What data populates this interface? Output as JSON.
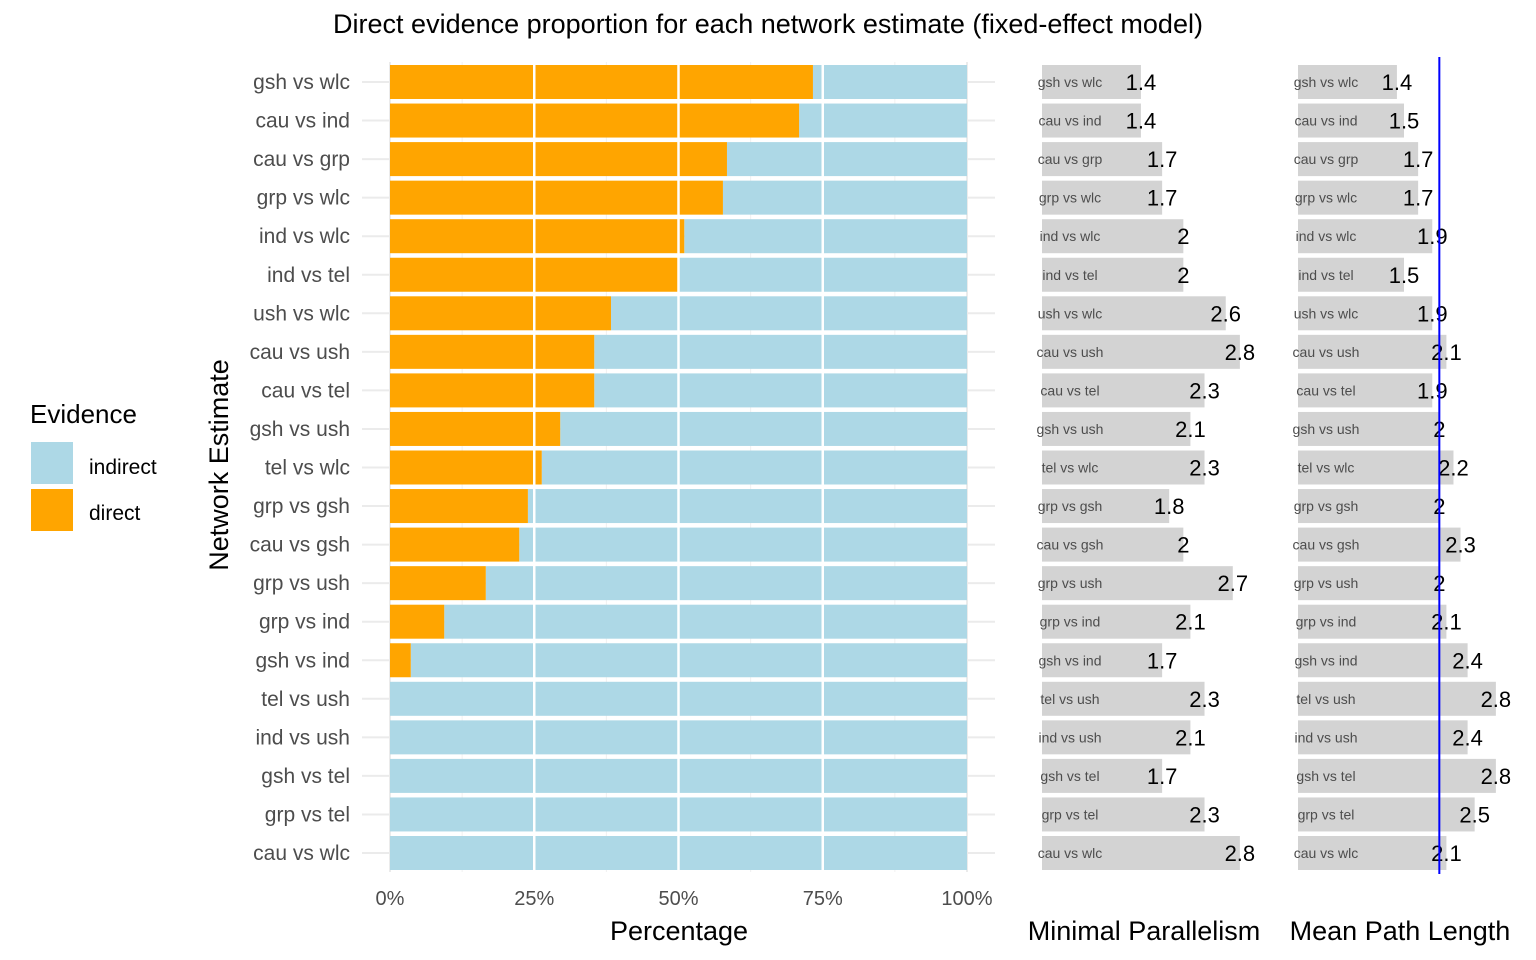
{
  "chart_data": {
    "type": "bar",
    "title": "Direct evidence proportion for each network estimate (fixed-effect model)",
    "categories": [
      "gsh vs wlc",
      "cau vs ind",
      "cau vs grp",
      "grp vs wlc",
      "ind vs wlc",
      "ind vs tel",
      "ush vs wlc",
      "cau vs ush",
      "cau vs tel",
      "gsh vs ush",
      "tel vs wlc",
      "grp vs gsh",
      "cau vs gsh",
      "grp vs ush",
      "grp vs ind",
      "gsh vs ind",
      "tel vs ush",
      "ind vs ush",
      "gsh vs tel",
      "grp vs tel",
      "cau vs wlc"
    ],
    "panels": [
      {
        "name": "evidence-proportion",
        "type": "stacked-bar-horizontal",
        "xlabel": "Percentage",
        "ylabel": "Network Estimate",
        "xlim": [
          0,
          100
        ],
        "xticks": [
          "0%",
          "25%",
          "50%",
          "75%",
          "100%"
        ],
        "series": [
          {
            "name": "direct",
            "color": "#FFA500",
            "values": [
              73.3,
              70.9,
              58.4,
              57.7,
              51.0,
              50.0,
              38.3,
              35.4,
              35.4,
              29.5,
              26.3,
              23.9,
              22.4,
              16.6,
              9.4,
              3.6,
              0,
              0,
              0,
              0,
              0
            ]
          },
          {
            "name": "indirect",
            "color": "#ADD8E6",
            "values": [
              26.7,
              29.1,
              41.6,
              42.3,
              49.0,
              50.0,
              61.7,
              64.6,
              64.6,
              70.5,
              73.7,
              76.1,
              77.6,
              83.4,
              90.6,
              96.4,
              100,
              100,
              100,
              100,
              100
            ]
          }
        ]
      },
      {
        "name": "minimal-parallelism",
        "type": "bar-horizontal",
        "xlabel": "Minimal Parallelism",
        "xlim": [
          0,
          3
        ],
        "xticks": [
          "0",
          "1",
          "2",
          "3"
        ],
        "color": "#D3D3D3",
        "values": [
          1.4,
          1.4,
          1.7,
          1.7,
          2,
          2,
          2.6,
          2.8,
          2.3,
          2.1,
          2.3,
          1.8,
          2,
          2.7,
          2.1,
          1.7,
          2.3,
          2.1,
          1.7,
          2.3,
          2.8
        ],
        "labels": [
          "1.4",
          "1.4",
          "1.7",
          "1.7",
          "2",
          "2",
          "2.6",
          "2.8",
          "2.3",
          "2.1",
          "2.3",
          "1.8",
          "2",
          "2.7",
          "2.1",
          "1.7",
          "2.3",
          "2.1",
          "1.7",
          "2.3",
          "2.8"
        ]
      },
      {
        "name": "mean-path-length",
        "type": "bar-horizontal",
        "xlabel": "Mean Path Length",
        "xlim": [
          0,
          3
        ],
        "xticks": [
          "0",
          "1",
          "2",
          "3"
        ],
        "color": "#D3D3D3",
        "reference_line": {
          "x": 2,
          "color": "#0000FF"
        },
        "values": [
          1.4,
          1.5,
          1.7,
          1.7,
          1.9,
          1.5,
          1.9,
          2.1,
          1.9,
          2,
          2.2,
          2,
          2.3,
          2,
          2.1,
          2.4,
          2.8,
          2.4,
          2.8,
          2.5,
          2.1
        ],
        "labels": [
          "1.4",
          "1.5",
          "1.7",
          "1.7",
          "1.9",
          "1.5",
          "1.9",
          "2.1",
          "1.9",
          "2",
          "2.2",
          "2",
          "2.3",
          "2",
          "2.1",
          "2.4",
          "2.8",
          "2.4",
          "2.8",
          "2.5",
          "2.1"
        ]
      }
    ],
    "legend": {
      "title": "Evidence",
      "position": "left",
      "items": [
        {
          "label": "indirect",
          "color": "#ADD8E6"
        },
        {
          "label": "direct",
          "color": "#FFA500"
        }
      ]
    }
  }
}
